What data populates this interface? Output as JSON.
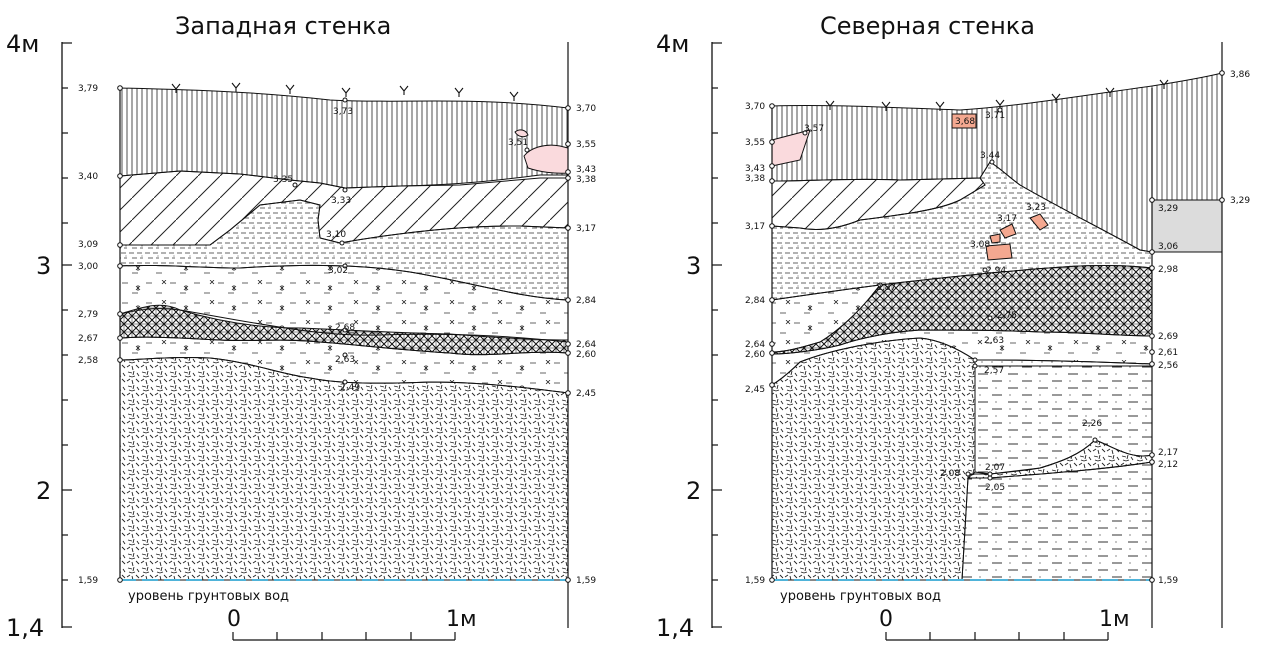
{
  "west": {
    "title": "Западная стенка",
    "axis_labels": [
      "4м",
      "3",
      "2",
      "1,4"
    ],
    "left_elevations": [
      "3,79",
      "3,40",
      "3,09",
      "3,00",
      "2,79",
      "2,67",
      "2,58",
      "1,59"
    ],
    "right_elevations": [
      "3,70",
      "3,55",
      "3,43",
      "3,38",
      "3,17",
      "2,84",
      "2,64",
      "2,60",
      "2,45",
      "1,59"
    ],
    "inner_elevations": [
      "3,73",
      "3,51",
      "3,35",
      "3,33",
      "3,10",
      "3,02",
      "2,68",
      "2,63",
      "2,49"
    ],
    "groundwater": "уровень грунтовых вод",
    "scale": {
      "zero": "0",
      "one": "1м"
    }
  },
  "north": {
    "title": "Северная стенка",
    "axis_labels": [
      "4м",
      "3",
      "2",
      "1,4"
    ],
    "left_elevations": [
      "3,70",
      "3,55",
      "3,43",
      "3,38",
      "3,17",
      "2,84",
      "2,64",
      "2,60",
      "2,45",
      "1,59"
    ],
    "right_elevations": [
      "3,86",
      "3,29",
      "3,29",
      "3,06",
      "2,98",
      "2,69",
      "2,61",
      "2,56",
      "2,17",
      "2,12",
      "1,59"
    ],
    "inner_elevations": [
      "3,57",
      "3,68",
      "3,71",
      "3,44",
      "3,23",
      "3,17",
      "3,08",
      "2,94",
      "2,87",
      "2,75",
      "2,63",
      "2,57",
      "2,26",
      "2,08",
      "2,07",
      "2,05"
    ],
    "groundwater": "уровень грунтовых вод",
    "scale": {
      "zero": "0",
      "one": "1м"
    }
  },
  "colors": {
    "line": "#111111",
    "find": "#f4a890",
    "stone": "#fadadd",
    "groundwater": "#4fb3d9",
    "fill_gray": "#dcdcdc"
  }
}
